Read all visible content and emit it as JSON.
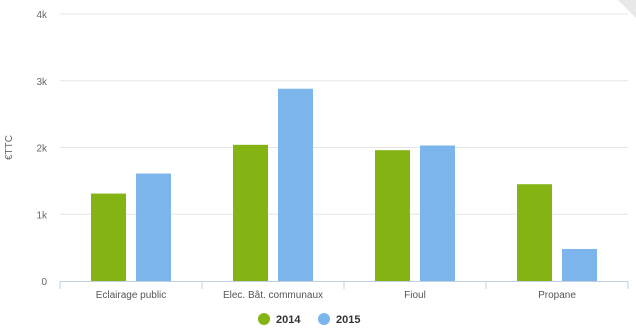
{
  "chart_data": {
    "type": "bar",
    "categories": [
      "Eclairage public",
      "Elec. Bât. communaux",
      "Fioul",
      "Propane"
    ],
    "series": [
      {
        "name": "2014",
        "color": "#84b414",
        "values": [
          1310,
          2040,
          1960,
          1450
        ]
      },
      {
        "name": "2015",
        "color": "#7cb5ec",
        "values": [
          1610,
          2880,
          2030,
          480
        ]
      }
    ],
    "ylabel": "€TTC",
    "ylim": [
      0,
      4000
    ],
    "yticks": [
      0,
      1000,
      2000,
      3000,
      4000
    ],
    "ytick_labels": [
      "0",
      "1k",
      "2k",
      "3k",
      "4k"
    ],
    "grid": true,
    "legend": "bottom-center"
  }
}
